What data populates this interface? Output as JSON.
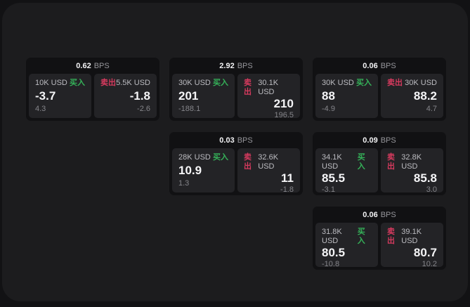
{
  "meta": {
    "unit": "BPS"
  },
  "labels": {
    "buy": "买入",
    "sell": "卖出"
  },
  "colors": {
    "buy": "#35b259",
    "sell": "#d63a5e",
    "window_bg": "#1c1c1e",
    "card_bg": "#111113",
    "panel_bg": "#232326"
  },
  "cards": [
    {
      "row": 0,
      "col": 0,
      "bps": "0.62",
      "buy": {
        "size": "10K USD",
        "value": "-3.7",
        "sub": "4.3"
      },
      "sell": {
        "size": "5.5K USD",
        "value": "-1.8",
        "sub": "-2.6"
      }
    },
    {
      "row": 0,
      "col": 1,
      "bps": "2.92",
      "buy": {
        "size": "30K USD",
        "value": "201",
        "sub": "-188.1"
      },
      "sell": {
        "size": "30.1K USD",
        "value": "210",
        "sub": "196.5"
      }
    },
    {
      "row": 0,
      "col": 2,
      "bps": "0.06",
      "buy": {
        "size": "30K USD",
        "value": "88",
        "sub": "-4.9"
      },
      "sell": {
        "size": "30K USD",
        "value": "88.2",
        "sub": "4.7"
      }
    },
    {
      "row": 1,
      "col": 1,
      "bps": "0.03",
      "buy": {
        "size": "28K USD",
        "value": "10.9",
        "sub": "1.3"
      },
      "sell": {
        "size": "32.6K USD",
        "value": "11",
        "sub": "-1.8"
      }
    },
    {
      "row": 1,
      "col": 2,
      "bps": "0.09",
      "buy": {
        "size": "34.1K USD",
        "value": "85.5",
        "sub": "-3.1"
      },
      "sell": {
        "size": "32.8K USD",
        "value": "85.8",
        "sub": "3.0"
      }
    },
    {
      "row": 2,
      "col": 2,
      "bps": "0.06",
      "buy": {
        "size": "31.8K USD",
        "value": "80.5",
        "sub": "-10.8"
      },
      "sell": {
        "size": "39.1K USD",
        "value": "80.7",
        "sub": "10.2"
      }
    }
  ]
}
